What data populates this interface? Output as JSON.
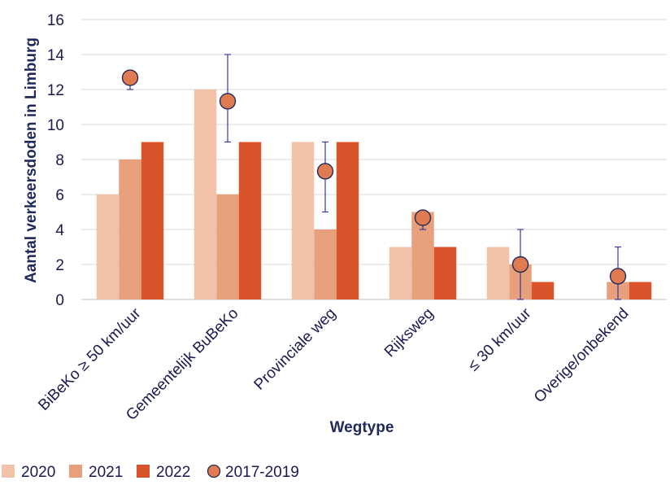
{
  "chart_data": {
    "type": "bar",
    "title": "",
    "xlabel": "Wegtype",
    "ylabel": "Aantal verkeersdoden in Limburg",
    "ylim": [
      0,
      16
    ],
    "yticks": [
      0,
      2,
      4,
      6,
      8,
      10,
      12,
      14,
      16
    ],
    "ytick_labels": [
      "0",
      "2",
      "4",
      "6",
      "8",
      "10",
      "12",
      "14",
      "16"
    ],
    "grid": "horizontal",
    "legend_position": "bottom-left",
    "categories": [
      "BiBeKo ≥ 50 km/uur",
      "Gemeentelijk BuBeKo",
      "Provinciale weg",
      "Rijksweg",
      "≤ 30 km/uur",
      "Overige/onbekend"
    ],
    "series": [
      {
        "name": "2020",
        "color": "#f2c2a8",
        "values": [
          6,
          12,
          9,
          3,
          3,
          0
        ]
      },
      {
        "name": "2021",
        "color": "#e8a07c",
        "values": [
          8,
          6,
          4,
          5,
          2,
          1
        ]
      },
      {
        "name": "2022",
        "color": "#d9542b",
        "values": [
          9,
          9,
          9,
          3,
          1,
          1
        ]
      }
    ],
    "points": {
      "name": "2017-2019",
      "color": "#e07a50",
      "values": [
        12.67,
        11.33,
        7.33,
        4.67,
        2.0,
        1.33
      ],
      "error_low": [
        12,
        9,
        5,
        4,
        0,
        0
      ],
      "error_high": [
        13,
        14,
        9,
        5,
        4,
        3
      ],
      "error_color": "#3a3aa0"
    }
  }
}
